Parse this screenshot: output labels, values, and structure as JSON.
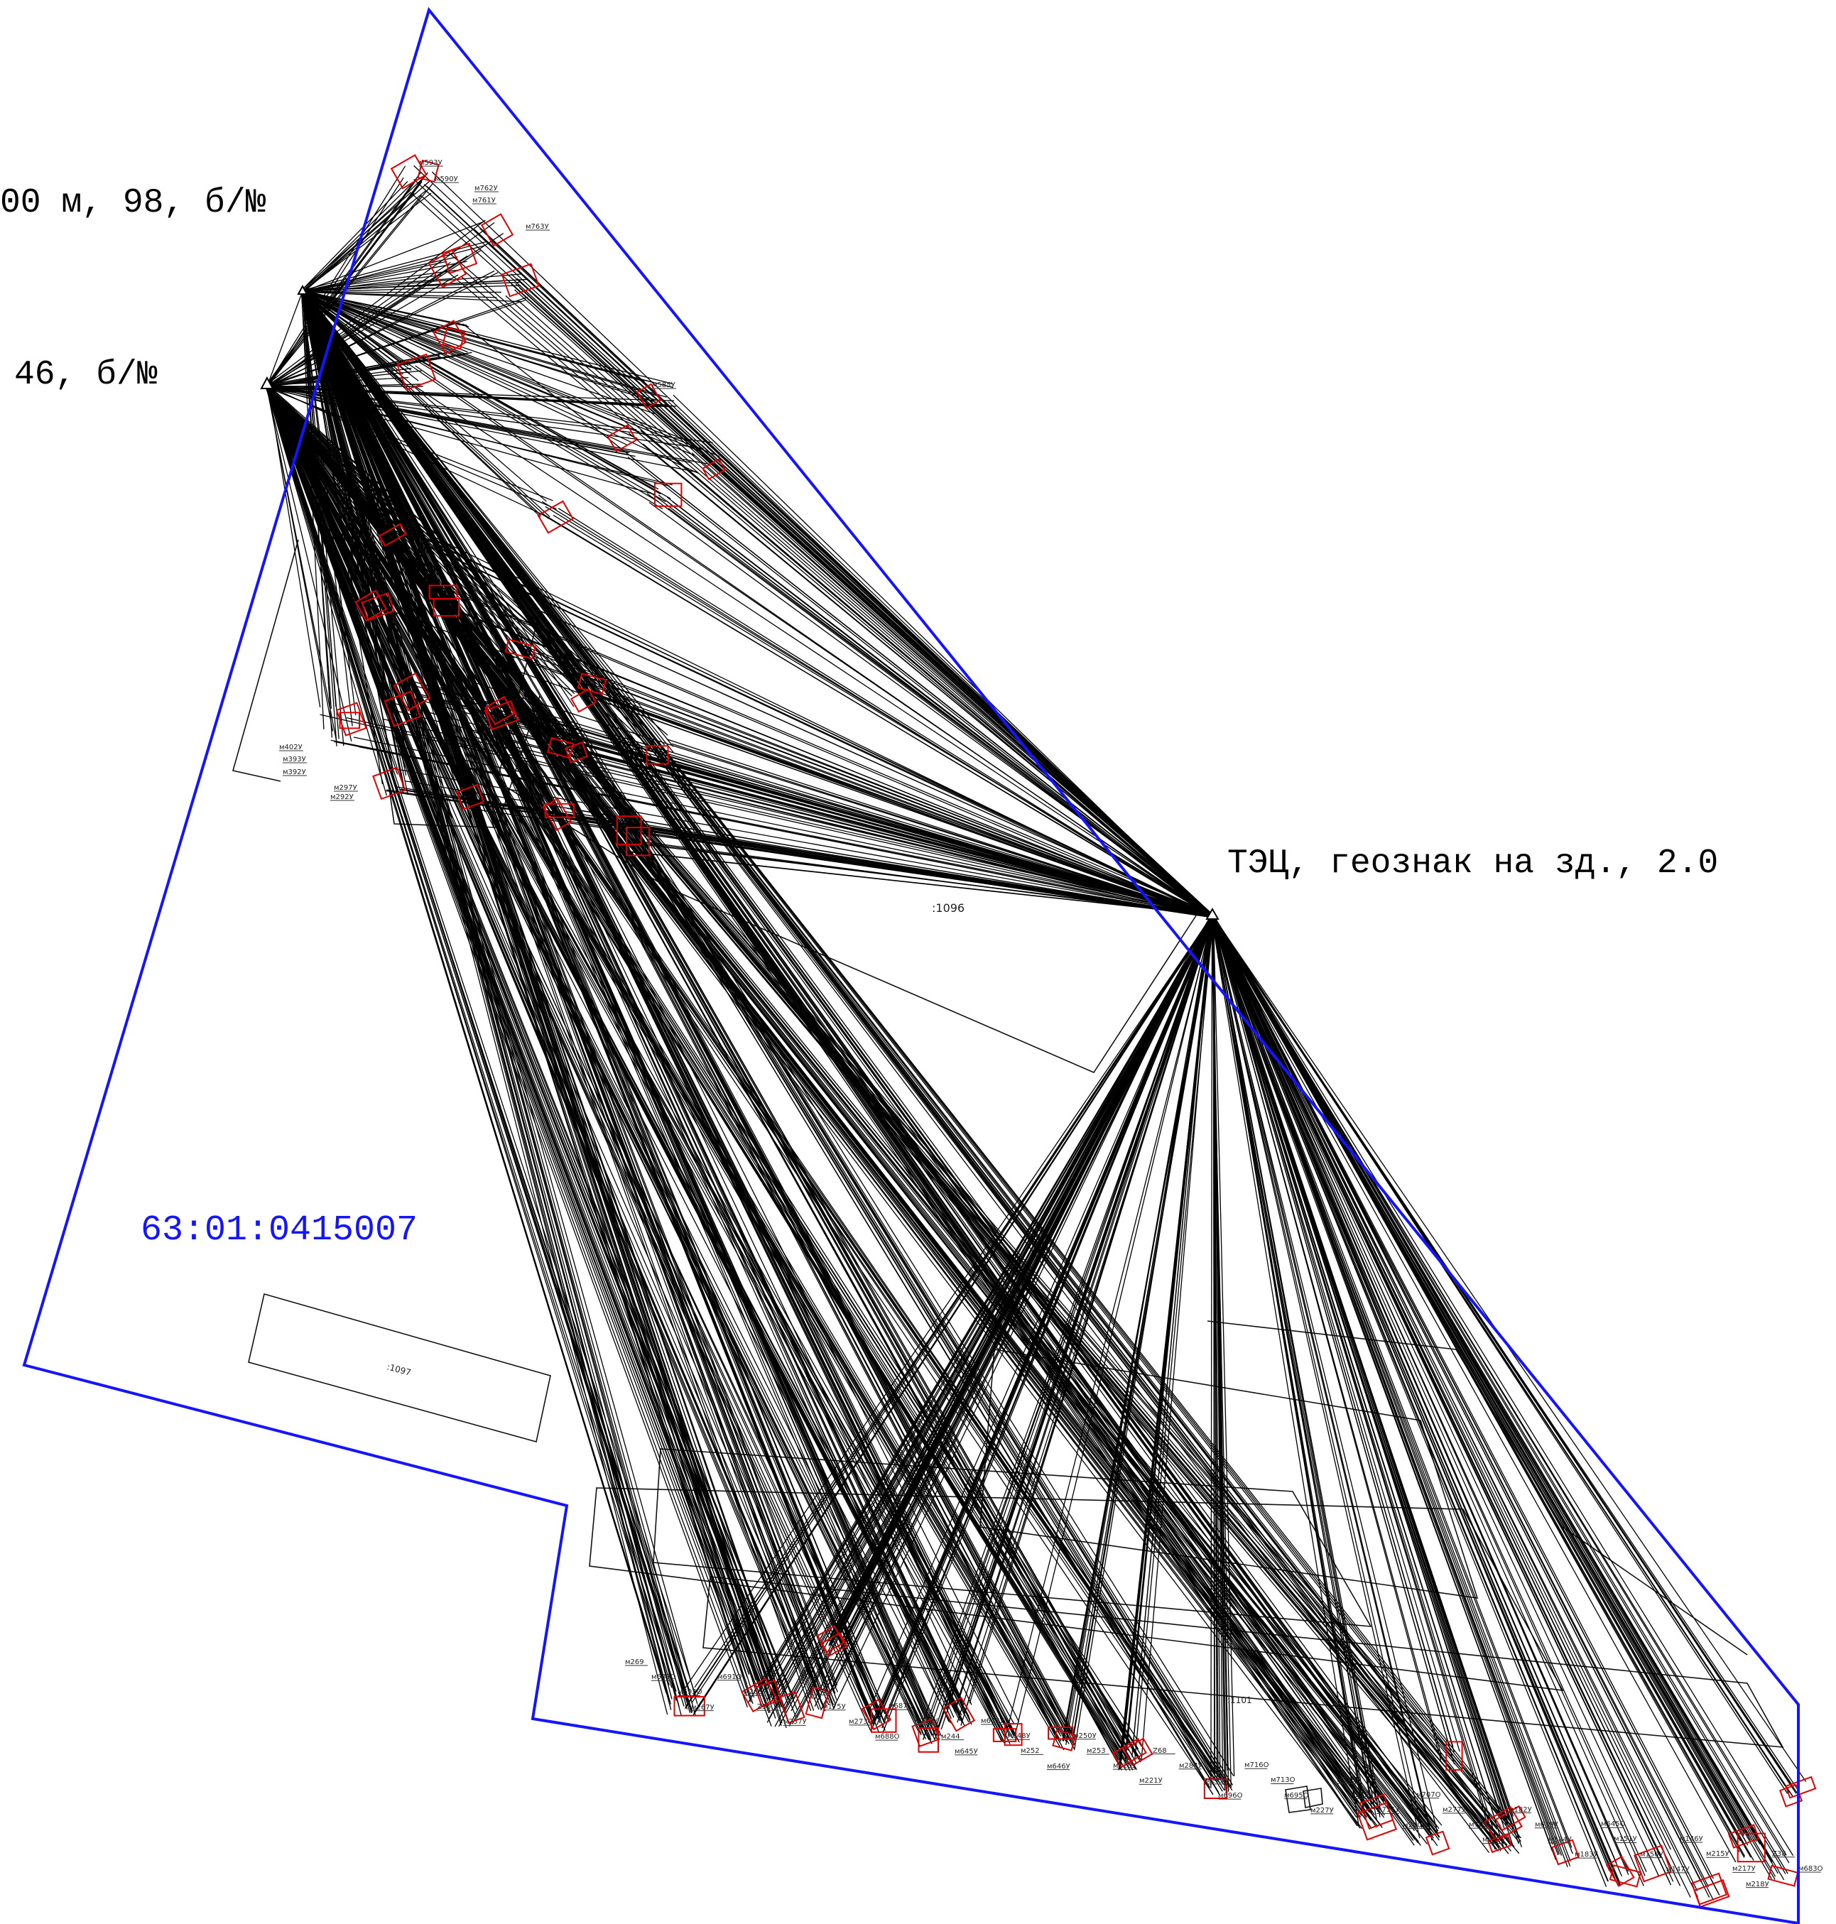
{
  "map": {
    "stations": [
      {
        "label": "00 м, 98, б/№"
      },
      {
        "label": "46, б/№"
      },
      {
        "label": "ТЭЦ, геознак на зд., 2.0"
      }
    ],
    "cadastral_block": "63:01:0415007",
    "parcels": [
      ":1096",
      ":1097",
      ":1101"
    ],
    "colors": {
      "boundary": "#1414ff",
      "observations": "#000000",
      "buildings": "#e00000",
      "outline": "#111111"
    },
    "point_labels_top": [
      "м593У",
      "м590У",
      "м762У",
      "м761У",
      "м763У",
      "м585У",
      "м402У",
      "м393У",
      "м392У",
      "м297У",
      "м292У"
    ],
    "point_labels_bottom": [
      "м269",
      "м689О",
      "м692О",
      "м267У",
      "м691О",
      "м268",
      "Z35",
      "м237У",
      "м176У",
      "м175У",
      "м273О",
      "м688О",
      "м687О",
      "м272У",
      "м244",
      "м645У",
      "м643У",
      "м648У",
      "м252",
      "м646У",
      "м250У",
      "м253",
      "м220У",
      "м221У",
      "Z68",
      "м284У",
      "м209У",
      "м696О",
      "м716О",
      "м713О",
      "м695О",
      "м227У",
      "м226У",
      "м212У",
      "м711У",
      "м200У",
      "м707О",
      "м277У",
      "м703О",
      "м643У",
      "м182У",
      "м639У",
      "м184У",
      "м183У",
      "м645О",
      "м151У",
      "м150У",
      "м147У",
      "м146У",
      "м215У",
      "м217У",
      "м218У",
      "Z38",
      "м683О"
    ]
  }
}
